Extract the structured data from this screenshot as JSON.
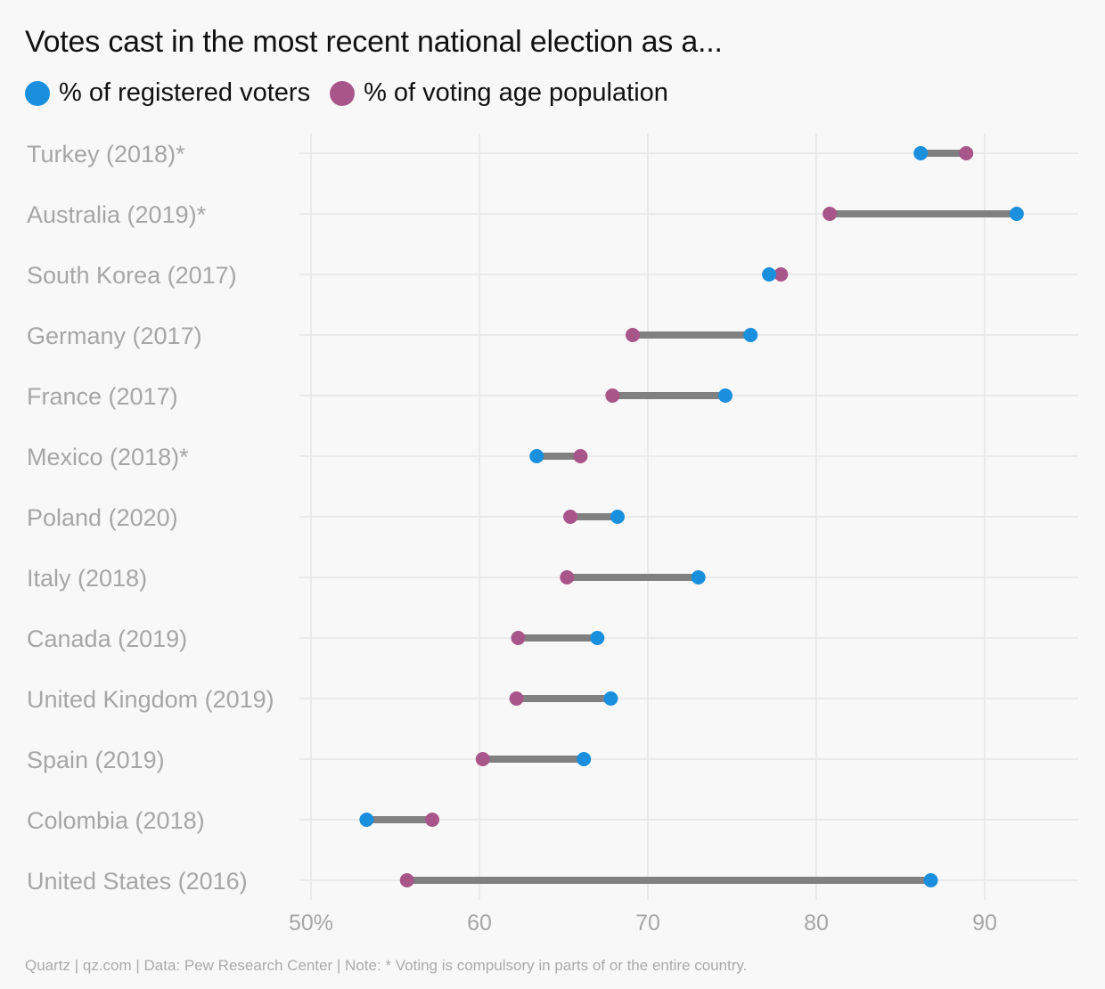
{
  "chart_data": {
    "type": "dumbbell",
    "title": "Votes cast in the most recent national election as a...",
    "legend": [
      {
        "name": "% of registered voters",
        "color": "#1a8fdd"
      },
      {
        "name": "% of voting age population",
        "color": "#a8568a"
      }
    ],
    "legend_position": "top-left",
    "categories": [
      "Turkey (2018)*",
      "Australia (2019)*",
      "South Korea (2017)",
      "Germany (2017)",
      "France (2017)",
      "Mexico (2018)*",
      "Poland (2020)",
      "Italy (2018)",
      "Canada (2019)",
      "United Kingdom (2019)",
      "Spain (2019)",
      "Colombia (2018)",
      "United States (2016)"
    ],
    "series": [
      {
        "name": "% of registered voters",
        "values": [
          86.2,
          91.9,
          77.2,
          76.1,
          74.6,
          63.4,
          68.2,
          73.0,
          67.0,
          67.8,
          66.2,
          53.3,
          86.8
        ]
      },
      {
        "name": "% of voting age population",
        "values": [
          88.9,
          80.8,
          77.9,
          69.1,
          67.9,
          66.0,
          65.4,
          65.2,
          62.3,
          62.2,
          60.2,
          57.2,
          55.7
        ]
      }
    ],
    "x_ticks": [
      "50%",
      "60",
      "70",
      "80",
      "90"
    ],
    "x_tick_values": [
      50,
      60,
      70,
      80,
      90
    ],
    "xlim": [
      50,
      95.6
    ],
    "grid": true,
    "colors": {
      "registered": "#1a8fdd",
      "voting_age": "#a8568a",
      "connector": "#808080",
      "gridline": "#e6e6e6",
      "label": "#a6a6a6"
    }
  },
  "footer": "Quartz | qz.com | Data: Pew Research Center | Note: * Voting is compulsory in parts of or the entire country."
}
